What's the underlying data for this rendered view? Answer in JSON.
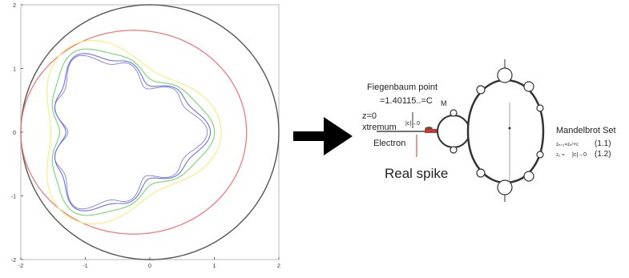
{
  "plot": {
    "x_ticks": [
      "-2",
      "-1",
      "0",
      "1",
      "2"
    ],
    "y_ticks": [
      "2",
      "1",
      "0",
      "-1",
      "-2"
    ],
    "xlim": [
      -2,
      2
    ],
    "ylim": [
      -2,
      2
    ],
    "curves": [
      {
        "name": "circle",
        "color": "#555555"
      },
      {
        "name": "red",
        "color": "#f07b7b"
      },
      {
        "name": "yellow",
        "color": "#f3ef86"
      },
      {
        "name": "green",
        "color": "#7fd87a"
      },
      {
        "name": "blue",
        "color": "#6f6fe6"
      }
    ]
  },
  "arrow": {
    "color": "#000000"
  },
  "labels": {
    "feigenbaum": "Fiegenbaum point",
    "feigenbaum_value": "=1.40115..=C",
    "feigenbaum_sub": "M",
    "z0": "z=0",
    "extremum": "xtremum",
    "electron": "Electron",
    "real_spike": "Real spike",
    "mandelbrot_set": "Mandelbrot Set",
    "formula1_left": "zₙ₊₁=zₙ²+c",
    "formula1_right": "(1.1)",
    "formula2_left": "z₀ =",
    "formula2_right": "(1.2)",
    "small_arrow": "|c|→0",
    "small_arrow2": "|c|→0"
  },
  "colors": {
    "accent_red": "#c0392b"
  }
}
